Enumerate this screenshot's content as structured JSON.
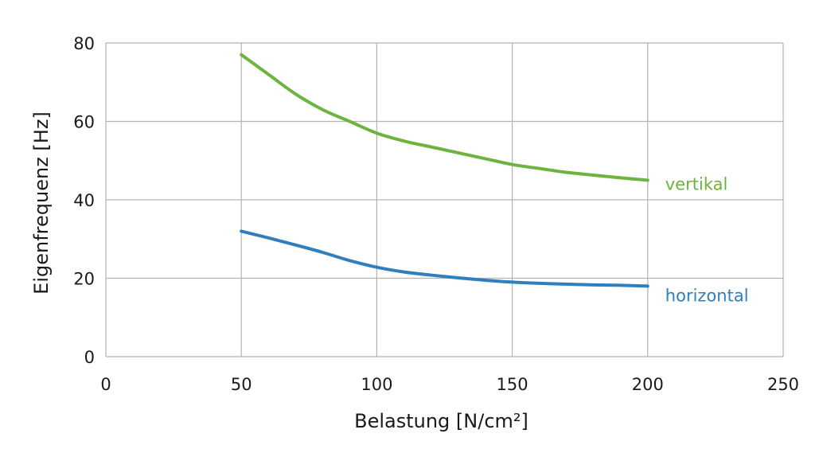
{
  "chart_data": {
    "type": "line",
    "title": "",
    "xlabel": "Belastung [N/cm²]",
    "ylabel": "Eigenfrequenz [Hz]",
    "xlim": [
      0,
      250
    ],
    "ylim": [
      0,
      80
    ],
    "xticks": [
      0,
      50,
      100,
      150,
      200,
      250
    ],
    "yticks": [
      0,
      20,
      40,
      60,
      80
    ],
    "grid": true,
    "legend": "inline-right",
    "series": [
      {
        "name": "vertikal",
        "color": "#6db33f",
        "x": [
          50,
          60,
          70,
          80,
          90,
          100,
          110,
          120,
          130,
          140,
          150,
          160,
          170,
          180,
          190,
          200
        ],
        "y": [
          77,
          72,
          67,
          63,
          60,
          57,
          55,
          53.5,
          52,
          50.5,
          49,
          48,
          47,
          46.3,
          45.6,
          45
        ]
      },
      {
        "name": "horizontal",
        "color": "#2f7fbf",
        "x": [
          50,
          60,
          70,
          80,
          90,
          100,
          110,
          120,
          130,
          140,
          150,
          160,
          170,
          180,
          190,
          200
        ],
        "y": [
          32,
          30.3,
          28.5,
          26.6,
          24.5,
          22.8,
          21.6,
          20.8,
          20.1,
          19.5,
          19,
          18.7,
          18.5,
          18.3,
          18.2,
          18
        ]
      }
    ]
  }
}
